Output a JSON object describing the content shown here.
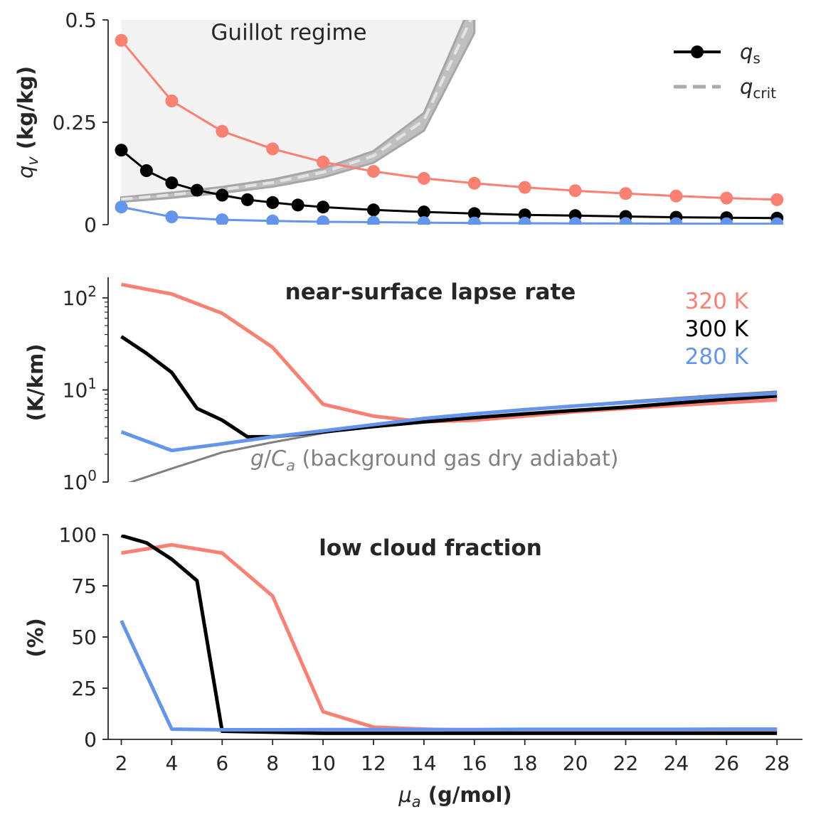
{
  "chart_data": [
    {
      "type": "line",
      "panel": "top",
      "title": "",
      "xlabel": "",
      "ylabel_html": [
        "q",
        "v",
        " (kg/kg)"
      ],
      "ylim": [
        0,
        0.5
      ],
      "yticks": [
        0,
        0.25,
        0.5
      ],
      "ytick_labels": [
        "0",
        "0.25",
        "0.5"
      ],
      "region_label": "Guillot regime",
      "legend": {
        "position": "top-right",
        "entries": [
          {
            "symbol": "q",
            "sub": "s"
          },
          {
            "symbol": "q",
            "sub": "crit"
          }
        ]
      },
      "series": [
        {
          "name": "q_s 320 K",
          "color": "#fa8072",
          "x": [
            2,
            4,
            6,
            8,
            10,
            12,
            14,
            16,
            18,
            20,
            22,
            24,
            26,
            28
          ],
          "values": [
            0.45,
            0.302,
            0.228,
            0.185,
            0.153,
            0.13,
            0.113,
            0.101,
            0.091,
            0.083,
            0.076,
            0.07,
            0.065,
            0.061
          ]
        },
        {
          "name": "q_s 300 K",
          "color": "#000000",
          "x": [
            2,
            3,
            4,
            5,
            6,
            7,
            8,
            9,
            10,
            12,
            14,
            16,
            18,
            20,
            22,
            24,
            26,
            28
          ],
          "values": [
            0.182,
            0.132,
            0.102,
            0.084,
            0.072,
            0.061,
            0.054,
            0.048,
            0.043,
            0.036,
            0.031,
            0.027,
            0.024,
            0.022,
            0.02,
            0.018,
            0.017,
            0.016
          ]
        },
        {
          "name": "q_s 280 K",
          "color": "#6495ed",
          "x": [
            2,
            4,
            6,
            8,
            10,
            12,
            14,
            16,
            18,
            20,
            22,
            24,
            26,
            28
          ],
          "values": [
            0.043,
            0.019,
            0.012,
            0.009,
            0.007,
            0.006,
            0.005,
            0.004,
            0.0035,
            0.003,
            0.0028,
            0.0025,
            0.0023,
            0.0021
          ]
        },
        {
          "name": "q_crit",
          "color": "#aaaaaa",
          "x": [
            2,
            4,
            6,
            8,
            10,
            12,
            14,
            16
          ],
          "values": [
            0.062,
            0.073,
            0.086,
            0.103,
            0.128,
            0.168,
            0.255,
            0.52
          ]
        }
      ]
    },
    {
      "type": "line",
      "panel": "middle",
      "title": "near-surface lapse rate",
      "ylabel": "(K/km)",
      "yscale": "log",
      "ylim": [
        1,
        180
      ],
      "ytick_labels": [
        [
          "10",
          "0"
        ],
        [
          "10",
          "1"
        ],
        [
          "10",
          "2"
        ]
      ],
      "temperature_labels": [
        {
          "text": "320 K",
          "color": "#fa8072"
        },
        {
          "text": "300 K",
          "color": "#000000"
        },
        {
          "text": "280 K",
          "color": "#6495ed"
        }
      ],
      "annotation_parts": [
        "g",
        "/",
        "C",
        "a",
        " (background gas dry adiabat)"
      ],
      "series": [
        {
          "name": "320 K",
          "color": "#fa8072",
          "x": [
            2,
            4,
            6,
            8,
            10,
            12,
            14,
            16,
            18,
            20,
            22,
            24,
            26,
            28
          ],
          "values": [
            140,
            110,
            68,
            29,
            7.0,
            5.2,
            4.5,
            4.7,
            5.2,
            5.8,
            6.3,
            6.8,
            7.3,
            7.8
          ]
        },
        {
          "name": "300 K",
          "color": "#000000",
          "x": [
            2,
            3,
            4,
            5,
            6,
            7,
            8,
            10,
            12,
            14,
            16,
            18,
            20,
            22,
            24,
            26,
            28
          ],
          "values": [
            38,
            25,
            15.5,
            6.3,
            4.7,
            3.1,
            3.1,
            3.5,
            4.0,
            4.5,
            5.0,
            5.5,
            6.0,
            6.5,
            7.2,
            7.9,
            8.6
          ]
        },
        {
          "name": "280 K",
          "color": "#6495ed",
          "x": [
            2,
            4,
            6,
            8,
            10,
            12,
            14,
            16,
            18,
            20,
            22,
            24,
            26,
            28
          ],
          "values": [
            3.5,
            2.2,
            2.6,
            3.1,
            3.6,
            4.2,
            4.9,
            5.5,
            6.1,
            6.7,
            7.3,
            7.9,
            8.6,
            9.2
          ]
        },
        {
          "name": "g/C_a",
          "color": "#808080",
          "x": [
            2,
            4,
            6,
            8,
            10,
            12,
            14,
            16,
            18,
            20,
            22,
            24,
            26,
            28
          ],
          "values": [
            0.92,
            1.4,
            2.1,
            2.7,
            3.4,
            4.1,
            4.8,
            5.5,
            6.2,
            6.8,
            7.5,
            8.2,
            8.9,
            9.6
          ]
        }
      ]
    },
    {
      "type": "line",
      "panel": "bottom",
      "title": "low cloud fraction",
      "ylabel": "(%)",
      "xlabel_parts": [
        "μ",
        "a",
        " (g/mol)"
      ],
      "ylim": [
        0,
        100
      ],
      "ytick_labels": [
        "0",
        "25",
        "50",
        "75",
        "100"
      ],
      "xtick_labels": [
        "2",
        "4",
        "6",
        "8",
        "10",
        "12",
        "14",
        "16",
        "18",
        "20",
        "22",
        "24",
        "26",
        "28"
      ],
      "series": [
        {
          "name": "320 K",
          "color": "#fa8072",
          "x": [
            2,
            4,
            6,
            8,
            10,
            12,
            14,
            16,
            18,
            20,
            22,
            24,
            26,
            28
          ],
          "values": [
            91,
            95,
            91,
            70,
            13.5,
            6,
            5,
            4.5,
            4,
            4,
            4,
            4,
            4,
            4
          ]
        },
        {
          "name": "300 K",
          "color": "#000000",
          "x": [
            2,
            3,
            4,
            5,
            6,
            8,
            10,
            12,
            14,
            16,
            18,
            20,
            22,
            24,
            26,
            28
          ],
          "values": [
            99.5,
            96,
            88,
            77.5,
            4,
            3.5,
            3,
            3,
            3,
            3,
            3,
            3,
            3,
            3,
            3,
            3
          ]
        },
        {
          "name": "280 K",
          "color": "#6495ed",
          "x": [
            2,
            4,
            6,
            8,
            10,
            12,
            14,
            16,
            18,
            20,
            22,
            24,
            26,
            28
          ],
          "values": [
            58,
            5,
            4.7,
            4.7,
            4.8,
            4.8,
            4.8,
            4.8,
            4.9,
            4.9,
            4.9,
            4.9,
            5,
            5
          ]
        }
      ]
    }
  ]
}
